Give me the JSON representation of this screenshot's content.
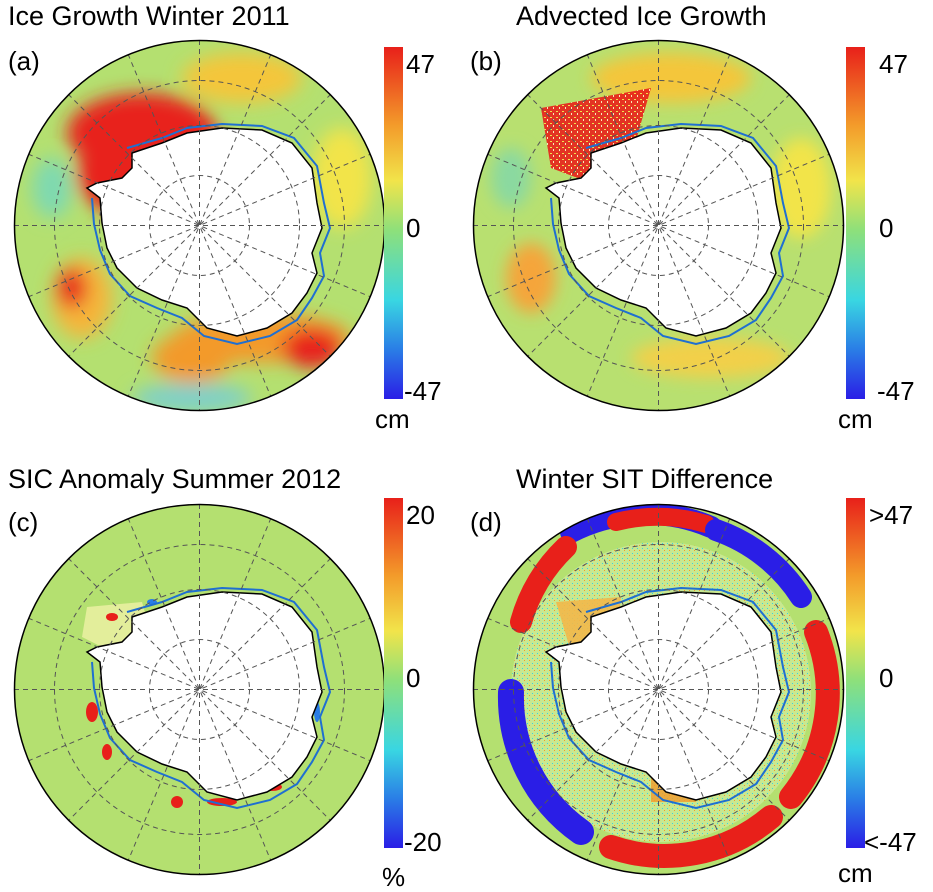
{
  "panels": [
    {
      "label": "(a)",
      "title": "Ice Growth Winter 2011",
      "colorbar": {
        "max": "47",
        "mid": "0",
        "min": "-47",
        "unit": "cm"
      }
    },
    {
      "label": "(b)",
      "title": "Advected Ice Growth",
      "colorbar": {
        "max": "47",
        "mid": "0",
        "min": "-47",
        "unit": "cm"
      }
    },
    {
      "label": "(c)",
      "title": "SIC Anomaly Summer 2012",
      "colorbar": {
        "max": "20",
        "mid": "0",
        "min": "-20",
        "unit": "%"
      }
    },
    {
      "label": "(d)",
      "title": "Winter SIT Difference",
      "colorbar": {
        "max": ">47",
        "mid": "0",
        "min": "<-47",
        "unit": "cm"
      }
    }
  ],
  "colors": {
    "red": "#e8201a",
    "orange": "#f39a2a",
    "yellow": "#f2e44a",
    "green": "#8ee07a",
    "cyan": "#39d6e2",
    "blue": "#2a1ee6",
    "coast": "#000000",
    "ice_edge": "#1f6fd1"
  }
}
